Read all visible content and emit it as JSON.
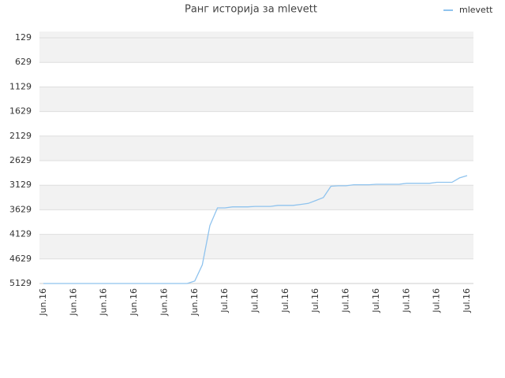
{
  "chart_data": {
    "type": "line",
    "title": "Ранг историја за mlevett",
    "categories": [
      "Jun.16",
      null,
      null,
      null,
      "Jun.16",
      null,
      null,
      null,
      "Jun.16",
      null,
      null,
      null,
      "Jun.16",
      null,
      null,
      null,
      "Jun.16",
      null,
      null,
      null,
      "Jun.16",
      null,
      null,
      null,
      "Jul.16",
      null,
      null,
      null,
      "Jul.16",
      null,
      null,
      null,
      "Jul.16",
      null,
      null,
      null,
      "Jul.16",
      null,
      null,
      null,
      "Jul.16",
      null,
      null,
      null,
      "Jul.16",
      null,
      null,
      null,
      "Jul.16",
      null,
      null,
      null,
      "Jul.16",
      null,
      null,
      null,
      "Jul.16"
    ],
    "series": [
      {
        "name": "mlevett",
        "color": "#8fc3ee",
        "values": [
          5129,
          5129,
          5129,
          5129,
          5129,
          5129,
          5129,
          5129,
          5129,
          5129,
          5129,
          5129,
          5129,
          5129,
          5129,
          5129,
          5129,
          5129,
          5129,
          5129,
          5080,
          4750,
          3950,
          3590,
          3590,
          3570,
          3570,
          3570,
          3560,
          3560,
          3560,
          3540,
          3540,
          3540,
          3520,
          3500,
          3440,
          3380,
          3150,
          3140,
          3140,
          3120,
          3120,
          3120,
          3110,
          3110,
          3110,
          3110,
          3090,
          3090,
          3090,
          3090,
          3070,
          3070,
          3070,
          2980,
          2933
        ]
      }
    ],
    "ylim": [
      1,
      5129
    ],
    "y_inverted": true,
    "yticks": [
      129,
      629,
      1129,
      1629,
      2129,
      2629,
      3129,
      3629,
      4129,
      4629,
      5129
    ],
    "grid": true,
    "legend": "top-right"
  }
}
